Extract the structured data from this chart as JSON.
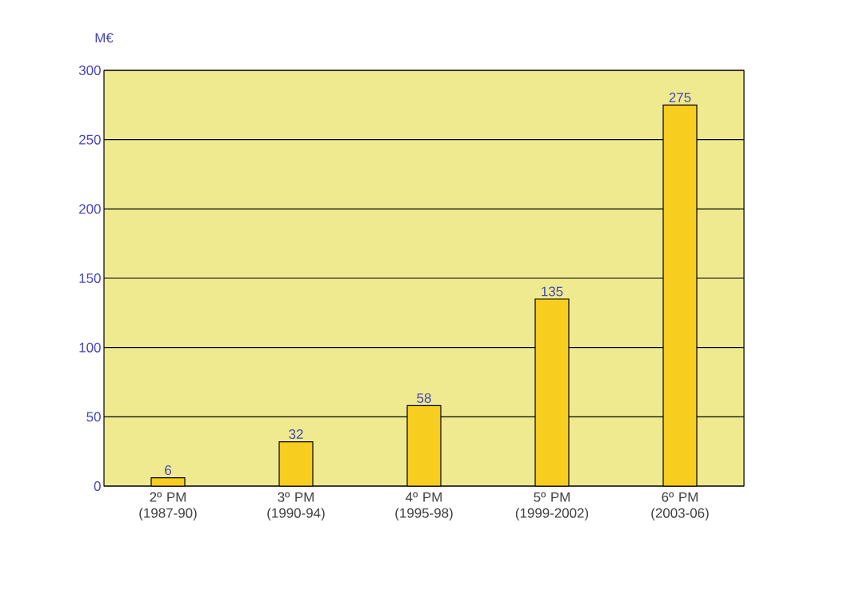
{
  "chart_data": {
    "type": "bar",
    "ylabel": "M€",
    "categories": [
      "2º PM (1987-90)",
      "3º PM (1990-94)",
      "4º PM (1995-98)",
      "5º PM (1999-2002)",
      "6º PM (2003-06)"
    ],
    "values": [
      6,
      32,
      58,
      135,
      275
    ],
    "color": "#f7cd1f",
    "ylim": [
      0,
      300
    ],
    "yticks": [
      0,
      50,
      100,
      150,
      200,
      250,
      300
    ],
    "grid": "y",
    "data_labels": true
  }
}
